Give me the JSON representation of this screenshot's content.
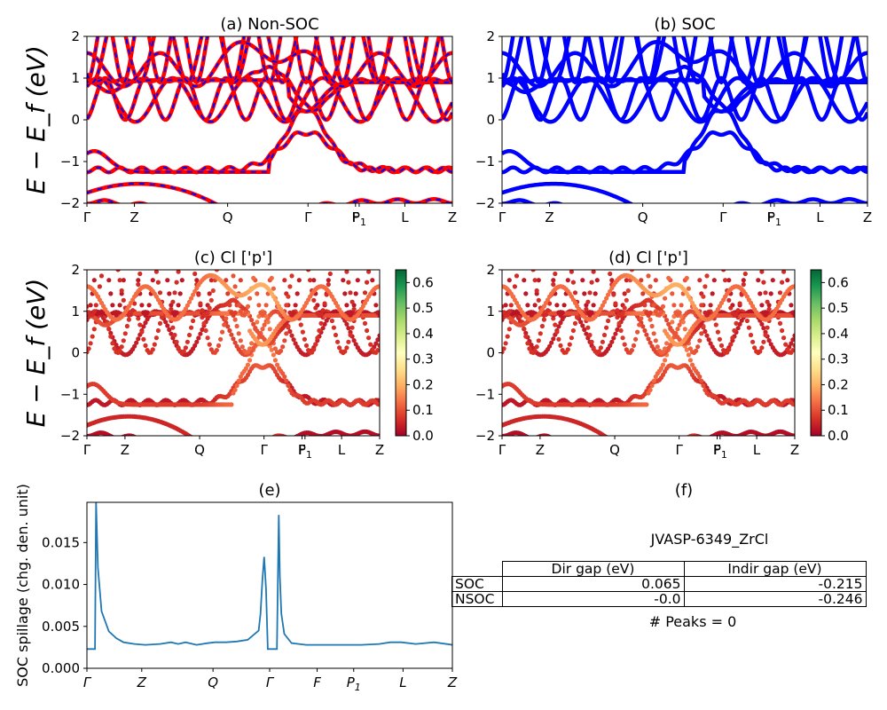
{
  "chart_data": [
    {
      "id": "a",
      "type": "line",
      "title": "(a) Non-SOC",
      "ylabel": "E − E_f (eV)",
      "ylim": [
        -2,
        2
      ],
      "yticks": [
        "−2",
        "−1",
        "0",
        "1",
        "2"
      ],
      "kticks": [
        "Γ",
        "Z",
        "Q",
        "Γ",
        "F",
        "P1",
        "L",
        "Z"
      ],
      "kpos": [
        0,
        0.13,
        0.385,
        0.605,
        0.735,
        0.745,
        0.87,
        1.0
      ],
      "series": [
        {
          "color": "#ff0000",
          "style": "thick"
        },
        {
          "color": "#0000ff",
          "style": "dashed"
        }
      ]
    },
    {
      "id": "b",
      "type": "line",
      "title": "(b) SOC",
      "ylim": [
        -2,
        2
      ],
      "yticks": [
        "−2",
        "−1",
        "0",
        "1",
        "2"
      ],
      "kticks": [
        "Γ",
        "Z",
        "Q",
        "Γ",
        "F",
        "P1",
        "L",
        "Z"
      ],
      "series": [
        {
          "color": "#0000ff",
          "style": "thick"
        }
      ]
    },
    {
      "id": "c",
      "type": "scatter",
      "title": "(c)  Cl ['p']",
      "ylabel": "E − E_f (eV)",
      "ylim": [
        -2,
        2
      ],
      "yticks": [
        "−2",
        "−1",
        "0",
        "1",
        "2"
      ],
      "kticks": [
        "Γ",
        "Z",
        "Q",
        "Γ",
        "F",
        "P1",
        "L",
        "Z"
      ],
      "colorbar": {
        "min": 0.0,
        "max": 0.65,
        "ticks": [
          "0.0",
          "0.1",
          "0.2",
          "0.3",
          "0.4",
          "0.5",
          "0.6"
        ],
        "colormap": "RdYlGn"
      }
    },
    {
      "id": "d",
      "type": "scatter",
      "title": "(d) Cl ['p']",
      "ylim": [
        -2,
        2
      ],
      "yticks": [
        "−2",
        "−1",
        "0",
        "1",
        "2"
      ],
      "kticks": [
        "Γ",
        "Z",
        "Q",
        "Γ",
        "F",
        "P1",
        "L",
        "Z"
      ],
      "colorbar": {
        "min": 0.0,
        "max": 0.65,
        "ticks": [
          "0.0",
          "0.1",
          "0.2",
          "0.3",
          "0.4",
          "0.5",
          "0.6"
        ],
        "colormap": "RdYlGn"
      }
    },
    {
      "id": "e",
      "type": "line",
      "title": "(e)",
      "ylabel": "SOC spillage (chg. den. unit)",
      "ylim": [
        0,
        0.0198
      ],
      "yticks": [
        "0.000",
        "0.005",
        "0.010",
        "0.015"
      ],
      "kticks": [
        "Γ",
        "Z",
        "Q",
        "Γ",
        "F",
        "P1",
        "L",
        "Z"
      ],
      "kpos": [
        0,
        0.15,
        0.345,
        0.5,
        0.63,
        0.73,
        0.865,
        1.0
      ],
      "series": [
        {
          "color": "#1f77b4",
          "x": [
            0,
            0.005,
            0.022,
            0.025,
            0.03,
            0.04,
            0.06,
            0.08,
            0.1,
            0.13,
            0.16,
            0.2,
            0.23,
            0.25,
            0.27,
            0.3,
            0.33,
            0.35,
            0.38,
            0.41,
            0.44,
            0.47,
            0.475,
            0.48,
            0.485,
            0.49,
            0.495,
            0.5,
            0.52,
            0.525,
            0.528,
            0.532,
            0.54,
            0.56,
            0.6,
            0.65,
            0.7,
            0.75,
            0.8,
            0.83,
            0.86,
            0.9,
            0.95,
            1.0
          ],
          "y": [
            0.0023,
            0.0023,
            0.0023,
            0.0198,
            0.012,
            0.0068,
            0.0044,
            0.0036,
            0.0031,
            0.0029,
            0.0028,
            0.0029,
            0.0031,
            0.0029,
            0.0031,
            0.0028,
            0.003,
            0.0031,
            0.0031,
            0.0032,
            0.0034,
            0.0045,
            0.0065,
            0.0105,
            0.0133,
            0.0095,
            0.0023,
            0.0023,
            0.0023,
            0.0183,
            0.011,
            0.0065,
            0.0041,
            0.003,
            0.0028,
            0.0028,
            0.0028,
            0.0028,
            0.0029,
            0.0031,
            0.0031,
            0.0029,
            0.0031,
            0.0028
          ]
        }
      ]
    }
  ],
  "panel_f": {
    "title": "(f)",
    "name": "JVASP-6349_ZrCl",
    "columns": [
      "Dir gap (eV)",
      "Indir gap (eV)"
    ],
    "rows": [
      {
        "label": "SOC",
        "dir": "0.065",
        "indir": "-0.215"
      },
      {
        "label": "NSOC",
        "dir": "-0.0",
        "indir": "-0.246"
      }
    ],
    "peaks": "# Peaks = 0"
  }
}
